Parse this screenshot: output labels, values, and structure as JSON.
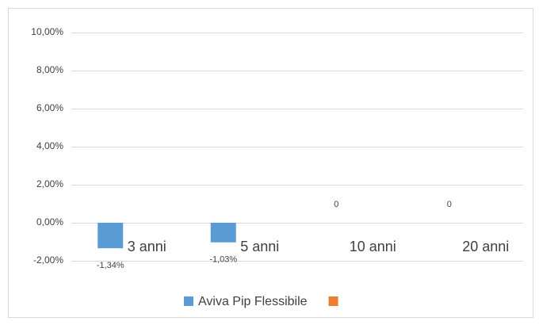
{
  "chart_data": {
    "type": "bar",
    "categories": [
      "3 anni",
      "5 anni",
      "10 anni",
      "20 anni"
    ],
    "series": [
      {
        "name": "Aviva Pip Flessibile",
        "color": "#5b9bd5",
        "values": [
          -1.34,
          -1.03,
          0,
          0
        ],
        "value_labels": [
          "-1,34%",
          "-1,03%",
          "0",
          "0"
        ]
      },
      {
        "color": "#ed7d31",
        "values": [
          null,
          null,
          null,
          null
        ]
      }
    ],
    "ylim": [
      -2,
      10
    ],
    "yticks": [
      {
        "value": -2,
        "label": "-2,00%"
      },
      {
        "value": 0,
        "label": "0,00%"
      },
      {
        "value": 2,
        "label": "2,00%"
      },
      {
        "value": 4,
        "label": "4,00%"
      },
      {
        "value": 6,
        "label": "6,00%"
      },
      {
        "value": 8,
        "label": "8,00%"
      },
      {
        "value": 10,
        "label": "10,00%"
      }
    ],
    "grid": true,
    "legend": "bottom"
  }
}
